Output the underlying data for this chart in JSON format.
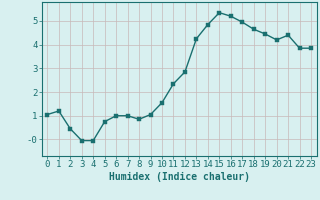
{
  "x": [
    0,
    1,
    2,
    3,
    4,
    5,
    6,
    7,
    8,
    9,
    10,
    11,
    12,
    13,
    14,
    15,
    16,
    17,
    18,
    19,
    20,
    21,
    22,
    23
  ],
  "y": [
    1.05,
    1.2,
    0.45,
    -0.05,
    -0.05,
    0.75,
    1.0,
    1.0,
    0.85,
    1.05,
    1.55,
    2.35,
    2.85,
    4.25,
    4.85,
    5.35,
    5.2,
    4.95,
    4.65,
    4.45,
    4.2,
    4.4,
    3.85,
    3.85
  ],
  "line_color": "#1a7070",
  "marker_color": "#1a7070",
  "bg_color": "#d8f0f0",
  "grid_color": "#c8b8b8",
  "axis_color": "#1a7070",
  "xlabel": "Humidex (Indice chaleur)",
  "ylim": [
    -0.7,
    5.8
  ],
  "xlim": [
    -0.5,
    23.5
  ],
  "ytick_labels": [
    "-0",
    "1",
    "2",
    "3",
    "4",
    "5"
  ],
  "ytick_vals": [
    0,
    1,
    2,
    3,
    4,
    5
  ],
  "xtick_labels": [
    "0",
    "1",
    "2",
    "3",
    "4",
    "5",
    "6",
    "7",
    "8",
    "9",
    "10",
    "11",
    "12",
    "13",
    "14",
    "15",
    "16",
    "17",
    "18",
    "19",
    "20",
    "21",
    "22",
    "23"
  ],
  "xlabel_fontsize": 7,
  "tick_fontsize": 6.5,
  "line_width": 1.0,
  "marker_size": 2.2
}
